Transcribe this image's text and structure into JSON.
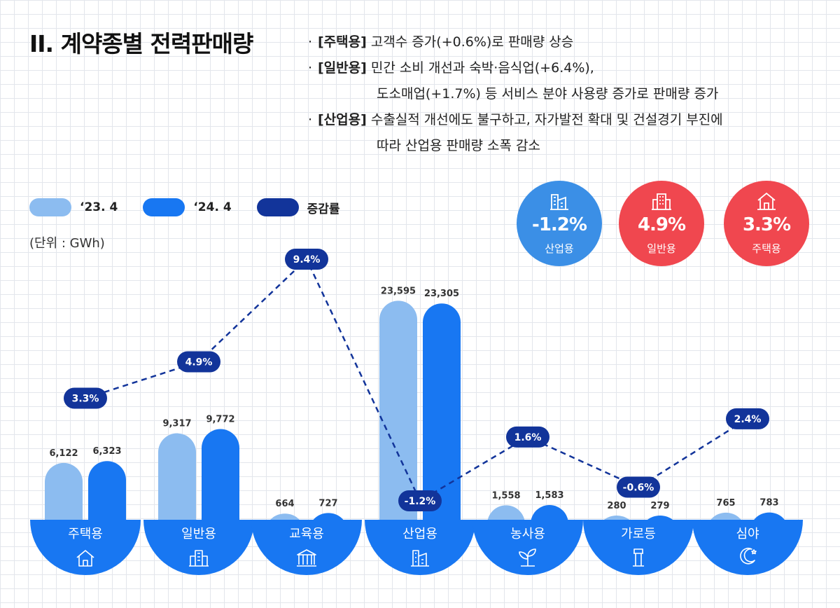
{
  "title": "II. 계약종별 전력판매량",
  "notes": [
    {
      "key": "[주택용]",
      "text": " 고객수 증가(+0.6%)로 판매량 상승"
    },
    {
      "key": "[일반용]",
      "text": " 민간 소비 개선과 숙박·음식업(+6.4%),"
    },
    {
      "key": "",
      "text": "도소매업(+1.7%) 등 서비스 분야 사용량 증가로 판매량 증가"
    },
    {
      "key": "[산업용]",
      "text": " 수출실적 개선에도 불구하고, 자가발전 확대 및 건설경기 부진에"
    },
    {
      "key": "",
      "text": "따라 산업용 판매량 소폭 감소"
    }
  ],
  "legend": {
    "prev": "‘23. 4",
    "curr": "‘24. 4",
    "rate": "증감률"
  },
  "unit": "(단위 : GWh)",
  "badges": [
    {
      "value": "-1.2%",
      "label": "산업용",
      "color": "#3b8fe6",
      "icon": "factory-icon"
    },
    {
      "value": "4.9%",
      "label": "일반용",
      "color": "#f0474f",
      "icon": "building-icon"
    },
    {
      "value": "3.3%",
      "label": "주택용",
      "color": "#f0474f",
      "icon": "house-icon"
    }
  ],
  "colors": {
    "prev": "#8cbcf0",
    "curr": "#1877f2",
    "rate": "#12349a",
    "cat": "#1877f2"
  },
  "chart_data": {
    "type": "bar",
    "categories": [
      "주택용",
      "일반용",
      "교육용",
      "산업용",
      "농사용",
      "가로등",
      "심야"
    ],
    "category_icons": [
      "house-icon",
      "building-icon",
      "school-icon",
      "factory-icon",
      "sprout-icon",
      "streetlight-icon",
      "moon-icon"
    ],
    "series": [
      {
        "name": "‘23. 4",
        "values": [
          6122,
          9317,
          664,
          23595,
          1558,
          280,
          765
        ],
        "labels": [
          "6,122",
          "9,317",
          "664",
          "23,595",
          "1,558",
          "280",
          "765"
        ]
      },
      {
        "name": "‘24. 4",
        "values": [
          6323,
          9772,
          727,
          23305,
          1583,
          279,
          783
        ],
        "labels": [
          "6,323",
          "9,772",
          "727",
          "23,305",
          "1,583",
          "279",
          "783"
        ]
      }
    ],
    "rate": {
      "name": "증감률",
      "values": [
        3.3,
        4.9,
        9.4,
        -1.2,
        1.6,
        -0.6,
        2.4
      ],
      "labels": [
        "3.3%",
        "4.9%",
        "9.4%",
        "-1.2%",
        "1.6%",
        "-0.6%",
        "2.4%"
      ]
    },
    "ylabel": "(단위 : GWh)"
  }
}
